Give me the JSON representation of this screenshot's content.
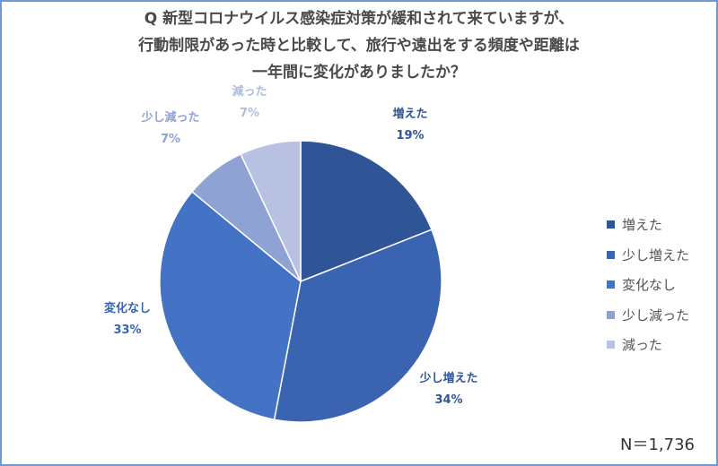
{
  "title_lines": [
    "Q 新型コロナウイルス感染症対策が緩和されて来ていますが、",
    "行動制限があった時と比較して、旅行や遠出をする頻度や距離は",
    "一年間に変化がありましたか？"
  ],
  "n_label": "N＝1,736",
  "chart_data": {
    "type": "pie",
    "title": "Q 新型コロナウイルス感染症対策が緩和されて来ていますが、行動制限があった時と比較して、旅行や遠出をする頻度や距離は一年間に変化がありましたか？",
    "legend_position": "right",
    "slices": [
      {
        "label": "増えた",
        "value": 19,
        "value_label": "19%",
        "color": "#2f5597"
      },
      {
        "label": "少し増えた",
        "value": 34,
        "value_label": "34%",
        "color": "#3a64b2"
      },
      {
        "label": "変化なし",
        "value": 33,
        "value_label": "33%",
        "color": "#4472c4"
      },
      {
        "label": "少し減った",
        "value": 7,
        "value_label": "7%",
        "color": "#8fa2d4"
      },
      {
        "label": "減った",
        "value": 7,
        "value_label": "7%",
        "color": "#b8c1e2"
      }
    ],
    "label_colors": [
      "#2f5597",
      "#2f5597",
      "#3a64b2",
      "#8fa2d4",
      "#b0bcde"
    ]
  }
}
